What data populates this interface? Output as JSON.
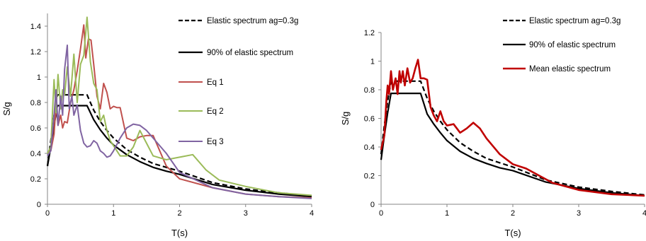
{
  "chart_data": [
    {
      "type": "line",
      "xlabel": "T(s)",
      "ylabel": "S/g",
      "xlim": [
        0,
        4
      ],
      "ylim": [
        0,
        1.5
      ],
      "x_ticks": [
        "0",
        "1",
        "2",
        "3",
        "4"
      ],
      "y_ticks": [
        "0",
        "0.2",
        "0.4",
        "0.6",
        "0.8",
        "1",
        "1.2",
        "1.4"
      ],
      "y_tick_values": [
        0,
        0.2,
        0.4,
        0.6,
        0.8,
        1.0,
        1.2,
        1.4
      ],
      "grid": false,
      "legend_placement": "right",
      "series": [
        {
          "name": "Elastic spectrum  ag=0.3g",
          "color": "#000000",
          "dash": "dashed",
          "width": 2.2,
          "x": [
            0,
            0.05,
            0.1,
            0.15,
            0.2,
            0.3,
            0.4,
            0.5,
            0.6,
            0.7,
            0.8,
            0.9,
            1.0,
            1.2,
            1.4,
            1.6,
            1.8,
            2.0,
            2.5,
            3.0,
            3.5,
            4.0
          ],
          "y": [
            0.3,
            0.5,
            0.7,
            0.86,
            0.86,
            0.86,
            0.86,
            0.86,
            0.86,
            0.74,
            0.65,
            0.58,
            0.52,
            0.43,
            0.37,
            0.32,
            0.29,
            0.26,
            0.17,
            0.12,
            0.09,
            0.065
          ]
        },
        {
          "name": "90% of elastic spectrum",
          "color": "#000000",
          "dash": "solid",
          "width": 2.2,
          "x": [
            0,
            0.05,
            0.1,
            0.15,
            0.2,
            0.3,
            0.4,
            0.5,
            0.6,
            0.7,
            0.8,
            0.9,
            1.0,
            1.2,
            1.4,
            1.6,
            1.8,
            2.0,
            2.5,
            3.0,
            3.5,
            4.0
          ],
          "y": [
            0.3,
            0.45,
            0.62,
            0.775,
            0.775,
            0.775,
            0.775,
            0.775,
            0.775,
            0.665,
            0.585,
            0.52,
            0.465,
            0.39,
            0.335,
            0.29,
            0.26,
            0.235,
            0.155,
            0.11,
            0.08,
            0.06
          ]
        },
        {
          "name": "Eq 1",
          "color": "#C0504D",
          "dash": "solid",
          "width": 2,
          "x": [
            0,
            0.05,
            0.1,
            0.13,
            0.16,
            0.2,
            0.23,
            0.26,
            0.3,
            0.35,
            0.4,
            0.45,
            0.5,
            0.55,
            0.58,
            0.62,
            0.66,
            0.7,
            0.75,
            0.8,
            0.85,
            0.9,
            0.95,
            1.0,
            1.05,
            1.1,
            1.2,
            1.3,
            1.4,
            1.5,
            1.6,
            1.8,
            2.0,
            2.5,
            3.0,
            3.5,
            4.0
          ],
          "y": [
            0.4,
            0.42,
            0.55,
            0.78,
            0.62,
            0.7,
            0.6,
            0.65,
            0.64,
            0.8,
            0.9,
            1.05,
            1.22,
            1.41,
            1.15,
            1.3,
            1.29,
            1.1,
            0.85,
            0.75,
            0.95,
            0.88,
            0.75,
            0.77,
            0.76,
            0.76,
            0.52,
            0.5,
            0.53,
            0.54,
            0.54,
            0.3,
            0.2,
            0.13,
            0.08,
            0.06,
            0.05
          ]
        },
        {
          "name": "Eq 2",
          "color": "#9BBB59",
          "dash": "solid",
          "width": 2,
          "x": [
            0,
            0.05,
            0.1,
            0.13,
            0.16,
            0.2,
            0.23,
            0.26,
            0.3,
            0.35,
            0.4,
            0.45,
            0.5,
            0.55,
            0.6,
            0.65,
            0.7,
            0.75,
            0.8,
            0.85,
            0.9,
            0.95,
            1.0,
            1.1,
            1.2,
            1.3,
            1.4,
            1.5,
            1.6,
            1.8,
            2.0,
            2.2,
            2.4,
            2.6,
            3.0,
            3.5,
            4.0
          ],
          "y": [
            0.4,
            0.45,
            0.98,
            0.72,
            1.02,
            0.75,
            0.9,
            0.86,
            1.08,
            0.85,
            1.18,
            0.8,
            1.1,
            1.17,
            1.47,
            1.12,
            0.95,
            0.9,
            0.65,
            0.7,
            0.58,
            0.5,
            0.46,
            0.38,
            0.38,
            0.45,
            0.58,
            0.48,
            0.38,
            0.35,
            0.37,
            0.39,
            0.27,
            0.19,
            0.14,
            0.09,
            0.07
          ]
        },
        {
          "name": "Eq 3",
          "color": "#8064A2",
          "dash": "solid",
          "width": 2,
          "x": [
            0,
            0.05,
            0.1,
            0.13,
            0.16,
            0.2,
            0.23,
            0.26,
            0.3,
            0.33,
            0.37,
            0.4,
            0.45,
            0.5,
            0.55,
            0.6,
            0.65,
            0.7,
            0.75,
            0.8,
            0.85,
            0.9,
            0.95,
            1.0,
            1.1,
            1.2,
            1.3,
            1.4,
            1.5,
            1.6,
            1.8,
            2.0,
            2.5,
            3.0,
            3.5,
            4.0
          ],
          "y": [
            0.38,
            0.42,
            0.7,
            0.9,
            0.62,
            0.85,
            0.7,
            1.06,
            1.25,
            0.75,
            0.85,
            0.7,
            0.78,
            0.58,
            0.48,
            0.45,
            0.46,
            0.5,
            0.48,
            0.42,
            0.4,
            0.37,
            0.38,
            0.42,
            0.52,
            0.6,
            0.63,
            0.62,
            0.58,
            0.52,
            0.4,
            0.25,
            0.13,
            0.08,
            0.06,
            0.045
          ]
        }
      ]
    },
    {
      "type": "line",
      "xlabel": "T(s)",
      "ylabel": "S/g",
      "xlim": [
        0,
        4
      ],
      "ylim": [
        0,
        1.2
      ],
      "x_ticks": [
        "0",
        "1",
        "2",
        "3",
        "4"
      ],
      "y_ticks": [
        "0",
        "0.2",
        "0.4",
        "0.6",
        "0.8",
        "1",
        "1.2"
      ],
      "y_tick_values": [
        0,
        0.2,
        0.4,
        0.6,
        0.8,
        1.0,
        1.2
      ],
      "grid": false,
      "legend_placement": "right",
      "series": [
        {
          "name": "Elastic spectrum  ag=0.3g",
          "color": "#000000",
          "dash": "dashed",
          "width": 2.2,
          "x": [
            0,
            0.05,
            0.1,
            0.15,
            0.2,
            0.3,
            0.4,
            0.5,
            0.6,
            0.7,
            0.8,
            0.9,
            1.0,
            1.2,
            1.4,
            1.6,
            1.8,
            2.0,
            2.5,
            3.0,
            3.5,
            4.0
          ],
          "y": [
            0.35,
            0.55,
            0.72,
            0.86,
            0.86,
            0.86,
            0.86,
            0.86,
            0.86,
            0.74,
            0.65,
            0.58,
            0.52,
            0.43,
            0.37,
            0.32,
            0.29,
            0.26,
            0.17,
            0.12,
            0.09,
            0.065
          ]
        },
        {
          "name": "90% of elastic spectrum",
          "color": "#000000",
          "dash": "solid",
          "width": 2.2,
          "x": [
            0,
            0.05,
            0.1,
            0.15,
            0.2,
            0.3,
            0.4,
            0.5,
            0.6,
            0.7,
            0.8,
            0.9,
            1.0,
            1.2,
            1.4,
            1.6,
            1.8,
            2.0,
            2.5,
            3.0,
            3.5,
            4.0
          ],
          "y": [
            0.31,
            0.48,
            0.64,
            0.775,
            0.775,
            0.775,
            0.775,
            0.775,
            0.775,
            0.63,
            0.56,
            0.5,
            0.445,
            0.37,
            0.32,
            0.285,
            0.255,
            0.235,
            0.155,
            0.11,
            0.08,
            0.06
          ]
        },
        {
          "name": "Mean elastic spectrum",
          "color": "#C00000",
          "dash": "solid",
          "width": 2.6,
          "x": [
            0,
            0.05,
            0.08,
            0.1,
            0.12,
            0.15,
            0.18,
            0.22,
            0.25,
            0.28,
            0.3,
            0.33,
            0.36,
            0.4,
            0.44,
            0.48,
            0.52,
            0.56,
            0.6,
            0.65,
            0.7,
            0.75,
            0.8,
            0.85,
            0.9,
            0.95,
            1.0,
            1.1,
            1.2,
            1.3,
            1.4,
            1.5,
            1.6,
            1.8,
            2.0,
            2.2,
            2.4,
            2.6,
            3.0,
            3.5,
            4.0
          ],
          "y": [
            0.38,
            0.48,
            0.72,
            0.83,
            0.77,
            0.93,
            0.8,
            0.88,
            0.77,
            0.93,
            0.85,
            0.93,
            0.83,
            0.95,
            0.85,
            0.88,
            0.95,
            1.01,
            0.88,
            0.88,
            0.87,
            0.68,
            0.62,
            0.58,
            0.65,
            0.58,
            0.55,
            0.56,
            0.5,
            0.53,
            0.57,
            0.53,
            0.46,
            0.35,
            0.28,
            0.25,
            0.2,
            0.15,
            0.1,
            0.07,
            0.06
          ]
        }
      ]
    }
  ]
}
